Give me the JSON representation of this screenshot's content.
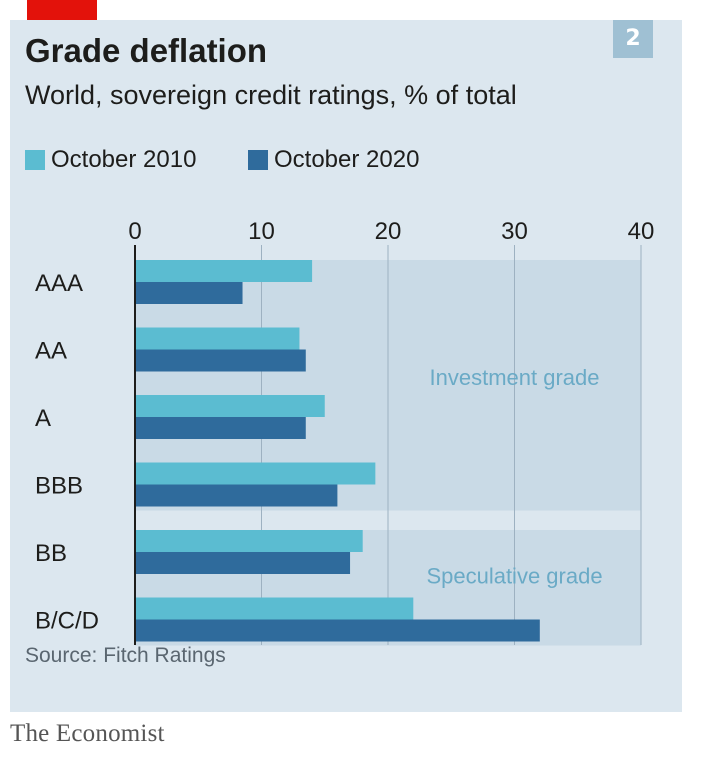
{
  "header": {
    "badge": "2",
    "title": "Grade deflation",
    "subtitle": "World, sovereign credit ratings, % of total"
  },
  "colors": {
    "series_2010": "#5bbcd1",
    "series_2020": "#2f6b9c",
    "accent_tag": "#e3120b",
    "region_label": "#6aaac6"
  },
  "chart_data": {
    "type": "bar",
    "orientation": "horizontal",
    "title": "Grade deflation",
    "subtitle": "World, sovereign credit ratings, % of total",
    "categories": [
      "AAA",
      "AA",
      "A",
      "BBB",
      "BB",
      "B/C/D"
    ],
    "series": [
      {
        "name": "October 2010",
        "values": [
          14,
          13,
          15,
          19,
          18,
          22
        ]
      },
      {
        "name": "October 2020",
        "values": [
          8.5,
          13.5,
          13.5,
          16,
          17,
          32
        ]
      }
    ],
    "xlim": [
      0,
      40
    ],
    "xticks": [
      0,
      10,
      20,
      30,
      40
    ],
    "xaxis_position": "top",
    "grid": true,
    "legend": "top-left",
    "regions": [
      {
        "label": "Investment grade",
        "categories": [
          "AAA",
          "AA",
          "A",
          "BBB"
        ]
      },
      {
        "label": "Speculative grade",
        "categories": [
          "BB",
          "B/C/D"
        ]
      }
    ]
  },
  "footer": {
    "source": "Source: Fitch Ratings",
    "brand": "The Economist"
  }
}
